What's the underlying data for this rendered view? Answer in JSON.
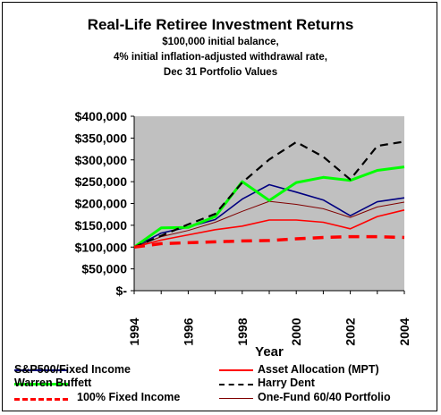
{
  "header": {
    "title": "Real-Life Retiree Investment Returns",
    "subtitle1": "$100,000 initial balance,",
    "subtitle2": "4% initial inflation-adjusted withdrawal rate,",
    "subtitle3": "Dec 31 Portfolio Values"
  },
  "colors": {
    "plot_background": "#c0c0c0",
    "sp500": "#000080",
    "asset_allocation": "#ff0000",
    "buffett": "#00ff00",
    "dent": "#000000",
    "fixed_income": "#ff0000",
    "one_fund": "#800000"
  },
  "chart_data": {
    "type": "line",
    "title": "Real-Life Retiree Investment Returns",
    "xlabel": "Year",
    "ylabel": "",
    "x": [
      1994,
      1995,
      1996,
      1997,
      1998,
      1999,
      2000,
      2001,
      2002,
      2003,
      2004
    ],
    "xticks": [
      "1994",
      "1996",
      "1998",
      "2000",
      "2002",
      "2004"
    ],
    "yticks": [
      "$-",
      "$50,000",
      "$100,000",
      "$150,000",
      "$200,000",
      "$250,000",
      "$300,000",
      "$350,000",
      "$400,000"
    ],
    "ylim": [
      0,
      400000
    ],
    "grid": false,
    "legend_position": "bottom",
    "series": [
      {
        "name": "S&P500/Fixed Income",
        "style": "solid",
        "values": [
          100000,
          132000,
          146000,
          163000,
          210000,
          243000,
          226000,
          208000,
          172000,
          204000,
          213000
        ]
      },
      {
        "name": "Asset Allocation (MPT)",
        "style": "solid",
        "values": [
          100000,
          116000,
          128000,
          140000,
          148000,
          162000,
          162000,
          157000,
          142000,
          170000,
          185000
        ]
      },
      {
        "name": "Warren Buffett",
        "style": "solid-thick",
        "values": [
          100000,
          144000,
          145000,
          170000,
          250000,
          207000,
          248000,
          260000,
          253000,
          276000,
          284000
        ]
      },
      {
        "name": "Harry Dent",
        "style": "dashed",
        "values": [
          100000,
          126000,
          152000,
          176000,
          248000,
          301000,
          341000,
          307000,
          255000,
          332000,
          342000
        ]
      },
      {
        "name": "100% Fixed Income",
        "style": "dashed-thick",
        "values": [
          100000,
          108000,
          110000,
          112000,
          114000,
          115000,
          119000,
          122000,
          124000,
          124000,
          122000
        ]
      },
      {
        "name": "One-Fund 60/40 Portfolio",
        "style": "solid-thin",
        "values": [
          100000,
          124000,
          138000,
          157000,
          182000,
          205000,
          198000,
          188000,
          168000,
          192000,
          203000
        ]
      }
    ]
  }
}
